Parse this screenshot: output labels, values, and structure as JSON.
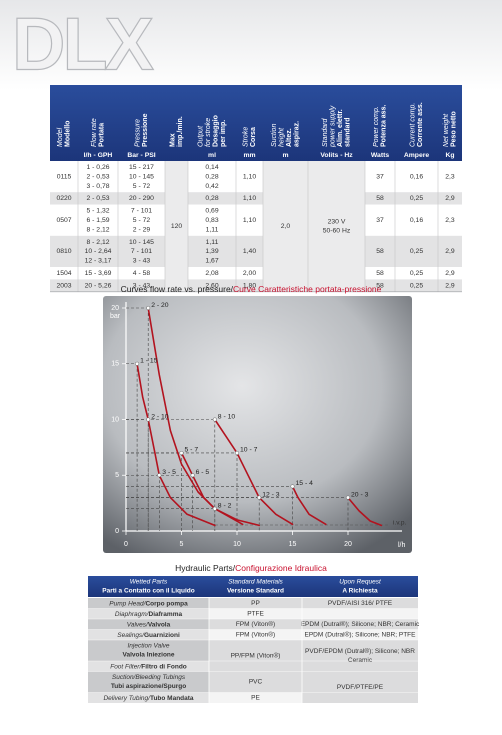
{
  "header": {
    "title": "DLX"
  },
  "spec_table": {
    "columns": [
      {
        "italic": [
          "Model"
        ],
        "bold": [
          "Modello"
        ]
      },
      {
        "italic": [
          "Flow rate"
        ],
        "bold": [
          "Portata"
        ],
        "unit": "l/h - GPH"
      },
      {
        "italic": [
          "Pressure"
        ],
        "bold": [
          "Pressione"
        ],
        "unit": "Bar - PSI"
      },
      {
        "bold": [
          "Max",
          "imp./min."
        ]
      },
      {
        "italic": [
          "Output",
          "for stroke"
        ],
        "bold": [
          "Dosaggio",
          "per imp."
        ],
        "unit": "ml"
      },
      {
        "italic": [
          "Stroke"
        ],
        "bold": [
          "Corsa"
        ],
        "unit": "mm"
      },
      {
        "italic": [
          "Suction",
          "height"
        ],
        "bold": [
          "Altez.",
          "aspiraz."
        ],
        "unit": "m"
      },
      {
        "italic": [
          "Standard",
          "power supply"
        ],
        "bold": [
          "Alim. elettr.",
          "standard"
        ],
        "unit": "Volits - Hz"
      },
      {
        "italic": [
          "Power comp."
        ],
        "bold": [
          "Potenza ass."
        ],
        "unit": "Watts"
      },
      {
        "italic": [
          "Current comp."
        ],
        "bold": [
          "Corrente ass."
        ],
        "unit": "Ampere"
      },
      {
        "italic": [
          "Net weight"
        ],
        "bold": [
          "Peso netto"
        ],
        "unit": "Kg"
      }
    ],
    "rows": [
      {
        "model": "0115",
        "flow": [
          "1 - 0,26",
          "2 - 0,53",
          "3 - 0,78"
        ],
        "pressure": [
          "15 - 217",
          "10 - 145",
          "5 - 72"
        ],
        "output": [
          "0,14",
          "0,28",
          "0,42"
        ],
        "stroke": "1,10",
        "power": "37",
        "current": "0,16",
        "weight": "2,3"
      },
      {
        "model": "0220",
        "flow": [
          "2 - 0,53"
        ],
        "pressure": [
          "20 - 290"
        ],
        "output": [
          "0,28"
        ],
        "stroke": "1,10",
        "power": "58",
        "current": "0,25",
        "weight": "2,9"
      },
      {
        "model": "0507",
        "flow": [
          "5 - 1,32",
          "6 - 1,59",
          "8 - 2,12"
        ],
        "pressure": [
          "7 - 101",
          "5 - 72",
          "2 - 29"
        ],
        "output": [
          "0,69",
          "0,83",
          "1,11"
        ],
        "stroke": "1,10",
        "power": "37",
        "current": "0,16",
        "weight": "2,3"
      },
      {
        "model": "0810",
        "flow": [
          "8 - 2,12",
          "10 - 2,64",
          "12 - 3,17"
        ],
        "pressure": [
          "10 - 145",
          "7 - 101",
          "3 - 43"
        ],
        "output": [
          "1,11",
          "1,39",
          "1,67"
        ],
        "stroke": "1,40",
        "power": "58",
        "current": "0,25",
        "weight": "2,9"
      },
      {
        "model": "1504",
        "flow": [
          "15 - 3,69"
        ],
        "pressure": [
          "4 - 58"
        ],
        "output": [
          "2,08"
        ],
        "stroke": "2,00",
        "power": "58",
        "current": "0,25",
        "weight": "2,9"
      },
      {
        "model": "2003",
        "flow": [
          "20 - 5,26"
        ],
        "pressure": [
          "3 - 43"
        ],
        "output": [
          "2,60"
        ],
        "stroke": "1,80",
        "power": "58",
        "current": "0,25",
        "weight": "2,9"
      }
    ],
    "max": "120",
    "suction": "2,0",
    "supply": [
      "230 V",
      "50-60 Hz"
    ]
  },
  "chart": {
    "title": "Curves flow rate vs. pressure/",
    "title_it": "Curve Caratteristiche portata-pressione",
    "y_label": "bar",
    "x_label": "l/h",
    "ivp_label": "i.v.p.",
    "xticks": [
      0,
      5,
      10,
      15,
      20
    ],
    "yticks": [
      0,
      5,
      10,
      15,
      20
    ],
    "points": [
      {
        "label": "2 - 20",
        "x": 2,
        "y": 20
      },
      {
        "label": "1 - 15",
        "x": 1,
        "y": 15
      },
      {
        "label": "2 - 10",
        "x": 2,
        "y": 10
      },
      {
        "label": "3 - 5",
        "x": 3,
        "y": 5
      },
      {
        "label": "5 - 7",
        "x": 5,
        "y": 7
      },
      {
        "label": "6 - 5",
        "x": 6,
        "y": 5
      },
      {
        "label": "8 - 2",
        "x": 8,
        "y": 2
      },
      {
        "label": "8 - 10",
        "x": 8,
        "y": 10
      },
      {
        "label": "10 - 7",
        "x": 10,
        "y": 7
      },
      {
        "label": "12 - 3",
        "x": 12,
        "y": 3
      },
      {
        "label": "15 - 4",
        "x": 15,
        "y": 4
      },
      {
        "label": "20 - 3",
        "x": 20,
        "y": 3
      }
    ],
    "curves": [
      {
        "x": [
          1,
          1.5,
          2,
          2.6,
          3,
          4,
          5.5,
          8
        ],
        "y": [
          15,
          12,
          10,
          7,
          5,
          3,
          1.5,
          0.5
        ]
      },
      {
        "x": [
          2,
          3,
          4,
          5,
          6.5,
          8,
          10.5
        ],
        "y": [
          20,
          14,
          9,
          6,
          3.5,
          2,
          0.6
        ]
      },
      {
        "x": [
          5,
          6,
          7,
          8,
          10,
          12
        ],
        "y": [
          7,
          5,
          3,
          2,
          1,
          0.5
        ]
      },
      {
        "x": [
          8,
          9,
          10,
          11,
          12,
          13.5,
          15
        ],
        "y": [
          10,
          8.5,
          7,
          5,
          3,
          1.5,
          0.6
        ]
      },
      {
        "x": [
          15,
          15.5,
          16.5,
          18
        ],
        "y": [
          4,
          3,
          1.5,
          0.6
        ]
      },
      {
        "x": [
          20,
          21,
          22,
          23
        ],
        "y": [
          3,
          1.8,
          0.9,
          0.5
        ]
      }
    ]
  },
  "parts_table": {
    "title": "Hydraulic Parts/",
    "title_it": "Configurazione Idraulica",
    "headers": [
      {
        "en": "Wetted Parts",
        "it": "Parti a Contatto con il Liquido"
      },
      {
        "en": "Standard Materials",
        "it": "Versione Standard"
      },
      {
        "en": "Upon Request",
        "it": "A Richiesta"
      }
    ],
    "rows": [
      {
        "en": "Pump Head/",
        "it": "Corpo pompa",
        "standard": [
          "PP"
        ],
        "request": [
          "PVDF/AISI 316/ PTFE"
        ]
      },
      {
        "en": "Diaphragm/",
        "it": "Diaframma",
        "standard": [
          "PTFE"
        ],
        "request": []
      },
      {
        "en": "Valves/",
        "it": "Valvola",
        "standard": [
          "FPM (Viton®)"
        ],
        "request": [
          "EPDM (Dutral®); Silicone; NBR; Ceramic"
        ]
      },
      {
        "en": "Sealings/",
        "it": "Guarnizioni",
        "standard": [
          "FPM (Viton®)"
        ],
        "request": [
          "EPDM (Dutral®); Silicone; NBR; PTFE"
        ]
      },
      {
        "en": "Injection Valve",
        "it": "Valvola Iniezione",
        "stacked": true,
        "standard": [
          "PP/FPM (Viton®)"
        ],
        "request": [
          "PVDF/EPDM (Dutral®); Silicone; NBR",
          "Ceramic"
        ]
      },
      {
        "en": "Foot Filter/",
        "it": "Filtro di Fondo"
      },
      {
        "en": "Suction/Bleeding Tubings",
        "it": "Tubi aspirazione/Spurgo",
        "stacked": true,
        "standard": [
          "PVC"
        ],
        "request": [
          "PVDF/PTFE/PE"
        ]
      },
      {
        "en": "Delivery Tubing/",
        "it": "Tubo Mandata",
        "standard": [
          "PE"
        ]
      }
    ]
  }
}
